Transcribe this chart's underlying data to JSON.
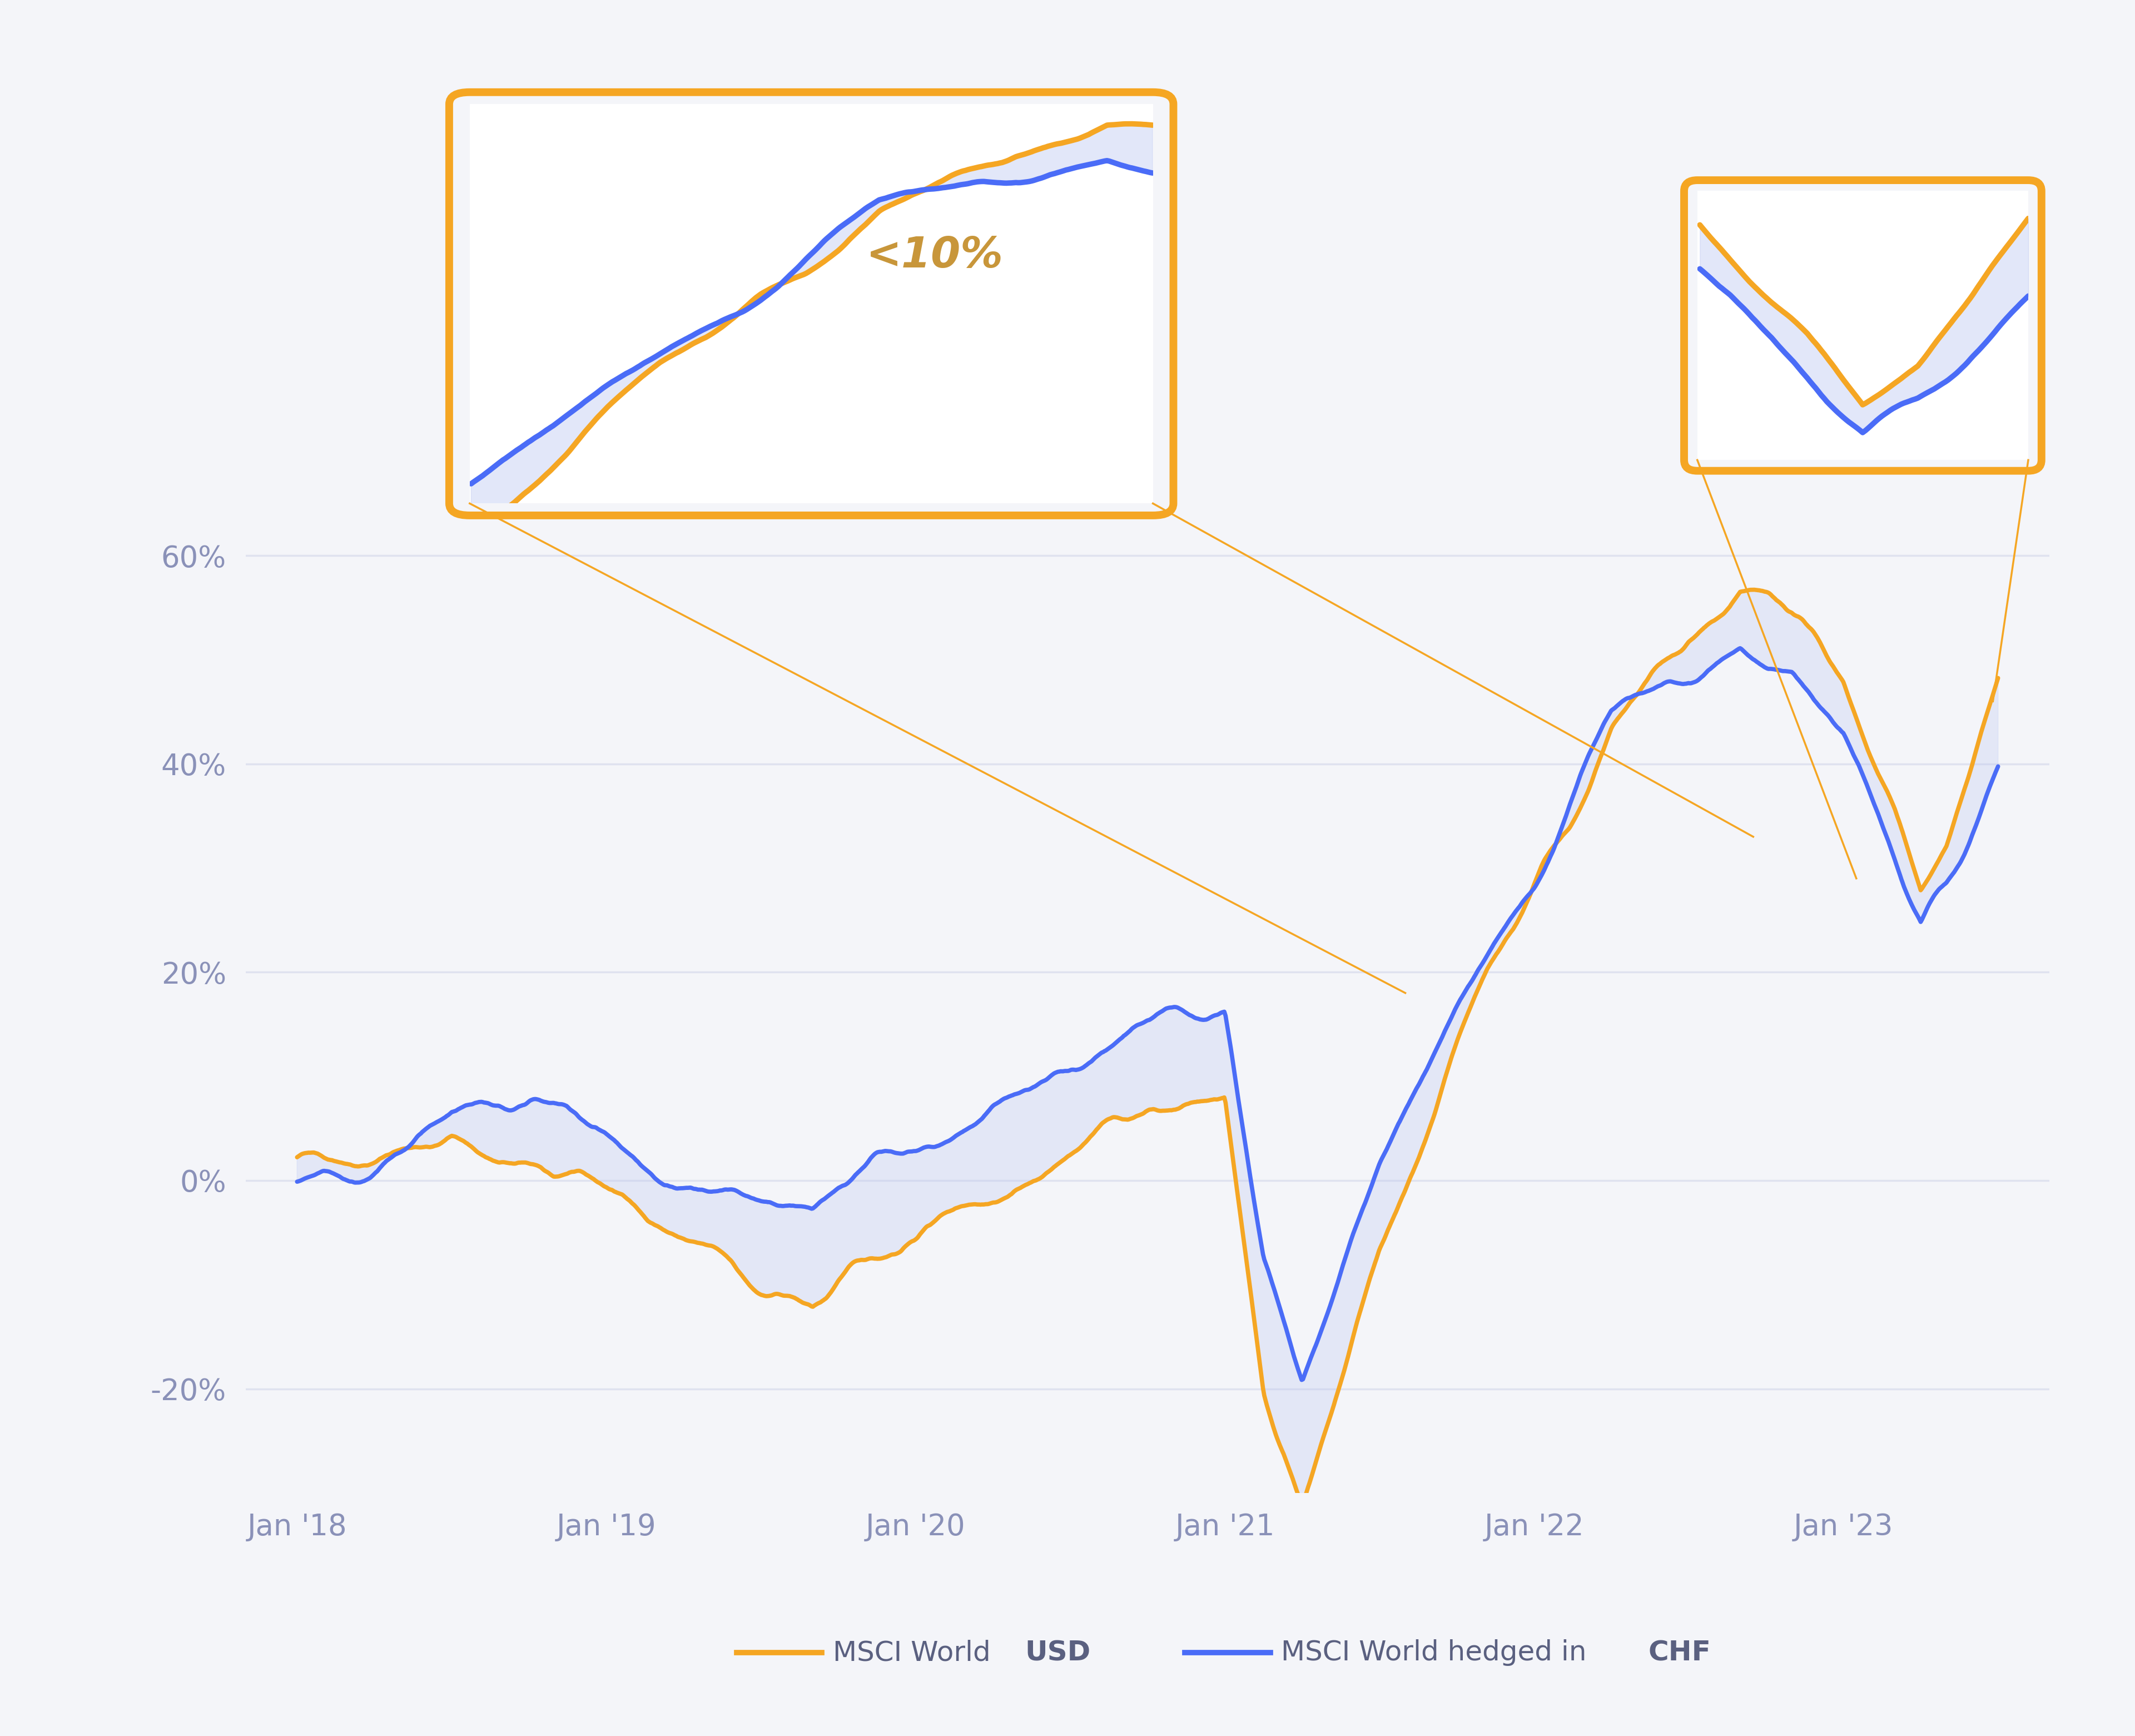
{
  "background_color": "#f4f5f9",
  "plot_bg_color": "#f4f5f9",
  "orange_color": "#F5A623",
  "blue_color": "#4A6CF7",
  "fill_color": "#b8c4f0",
  "grid_color": "#dde0ee",
  "tick_label_color": "#8a91b8",
  "legend_label_color": "#5a6080",
  "annotation_color": "#c8963a",
  "ylabel_ticks": [
    "-20%",
    "0%",
    "20%",
    "40%",
    "60%"
  ],
  "ylabel_values": [
    -20,
    0,
    20,
    40,
    60
  ],
  "xlabels": [
    "Jan '18",
    "Jan '19",
    "Jan '20",
    "Jan '21",
    "Jan '22",
    "Jan '23"
  ],
  "annotation_text": "<10%"
}
